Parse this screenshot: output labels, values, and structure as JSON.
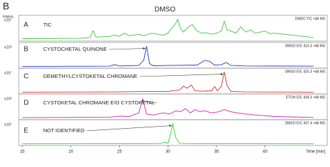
{
  "figure_label": "B",
  "title": "DMSO",
  "y_axis_label": "Intens.",
  "chart_data": [
    {
      "type": "line",
      "panel": "A",
      "annotation": "TIC",
      "trace_label": "DMSO TIC +All MS",
      "y_multiplier": "x10⁷",
      "color": "#3cbf3c",
      "xlim": [
        14.64,
        46.4
      ],
      "ylim": [
        0,
        1
      ],
      "x": [
        15,
        21,
        22,
        22.3,
        22.6,
        24,
        24.5,
        25,
        25.5,
        26,
        27,
        27.5,
        28.3,
        29,
        29.5,
        30,
        30.5,
        30.8,
        31,
        31.3,
        31.6,
        32,
        32.5,
        33,
        33.5,
        34,
        34.5,
        35,
        35.5,
        35.8,
        36.1,
        36.5,
        37,
        37.5,
        38,
        38.5,
        39,
        40,
        40.5,
        41,
        42,
        43,
        44,
        45
      ],
      "values": [
        0.05,
        0.06,
        0.1,
        0.42,
        0.12,
        0.15,
        0.22,
        0.15,
        0.3,
        0.18,
        0.25,
        0.18,
        0.3,
        0.25,
        0.2,
        0.3,
        0.6,
        0.75,
        0.95,
        0.5,
        0.35,
        0.55,
        0.7,
        0.4,
        0.3,
        0.32,
        0.25,
        0.3,
        0.4,
        0.85,
        0.45,
        0.4,
        0.3,
        0.6,
        0.35,
        0.45,
        0.3,
        0.4,
        0.28,
        0.3,
        0.25,
        0.2,
        0.15,
        0.1
      ]
    },
    {
      "type": "line",
      "panel": "B",
      "annotation": "CYSTOCHETAL QUINONE",
      "trace_label": "DMSO EIC 423.3 +All MS",
      "y_multiplier": "x10⁶",
      "color": "#2233bb",
      "xlim": [
        14.64,
        46.4
      ],
      "ylim": [
        0,
        1
      ],
      "x": [
        15,
        24,
        24.5,
        25,
        27,
        27.5,
        27.8,
        28.1,
        28.5,
        30,
        33,
        33.8,
        34.3,
        34.8,
        35.5,
        36,
        36.5,
        38,
        45
      ],
      "values": [
        0.02,
        0.03,
        0.1,
        0.04,
        0.06,
        0.3,
        0.95,
        0.15,
        0.05,
        0.06,
        0.08,
        0.3,
        0.25,
        0.08,
        0.1,
        0.2,
        0.06,
        0.04,
        0.03
      ]
    },
    {
      "type": "line",
      "panel": "C",
      "annotation": "DEMETHYLCYSTOKETAL CHROMANE",
      "trace_label": "DMSO EIC 425.3 +All MS",
      "y_multiplier": "x10⁷",
      "color": "#d42a2a",
      "xlim": [
        14.64,
        46.4
      ],
      "ylim": [
        0,
        1
      ],
      "x": [
        15,
        25,
        28,
        30,
        31.2,
        31.6,
        32,
        32.4,
        32.8,
        33.5,
        34.5,
        34.8,
        35.1,
        35.5,
        35.8,
        36.1,
        36.5,
        38,
        45
      ],
      "values": [
        0.02,
        0.03,
        0.05,
        0.05,
        0.12,
        0.3,
        0.2,
        0.35,
        0.08,
        0.06,
        0.08,
        0.28,
        0.08,
        0.3,
        0.95,
        0.3,
        0.05,
        0.03,
        0.02
      ]
    },
    {
      "type": "line",
      "panel": "D",
      "annotation": "CYSTOKETAL CHROMANE E/O CYSTOKETAL",
      "trace_label": "ETOH EIC 439.3 +All MS",
      "y_multiplier": "x10⁶",
      "color": "#cc22aa",
      "xlim": [
        14.64,
        46.4
      ],
      "ylim": [
        0,
        1
      ],
      "x": [
        15,
        24,
        25,
        26,
        27,
        27.4,
        27.8,
        28.5,
        29.5,
        30.2,
        30.8,
        31.3,
        31.8,
        32.3,
        32.8,
        33.3,
        33.8,
        34.5,
        35.2,
        35.8,
        36.5,
        37.2,
        38,
        39,
        40,
        41,
        45
      ],
      "values": [
        0.03,
        0.05,
        0.1,
        0.08,
        0.25,
        0.9,
        0.2,
        0.15,
        0.25,
        0.2,
        0.35,
        0.3,
        0.45,
        0.25,
        0.4,
        0.3,
        0.35,
        0.25,
        0.3,
        0.4,
        0.3,
        0.25,
        0.2,
        0.15,
        0.12,
        0.08,
        0.04
      ]
    },
    {
      "type": "line",
      "panel": "E",
      "annotation": "NOT IDENTIFIED",
      "trace_label": "DMSO EIC 407.4 +All MS",
      "y_multiplier": "x10⁷",
      "color": "#33cc33",
      "xlim": [
        14.64,
        46.4
      ],
      "ylim": [
        0,
        1
      ],
      "x": [
        15,
        28,
        29.3,
        29.6,
        30,
        30.3,
        30.5,
        30.8,
        31.2,
        33,
        45
      ],
      "values": [
        0.01,
        0.02,
        0.03,
        0.08,
        0.04,
        0.5,
        0.95,
        0.3,
        0.03,
        0.02,
        0.01
      ],
      "xticks": [
        15,
        20,
        25,
        30,
        35,
        40
      ],
      "xlabel": "Time [min]"
    }
  ]
}
